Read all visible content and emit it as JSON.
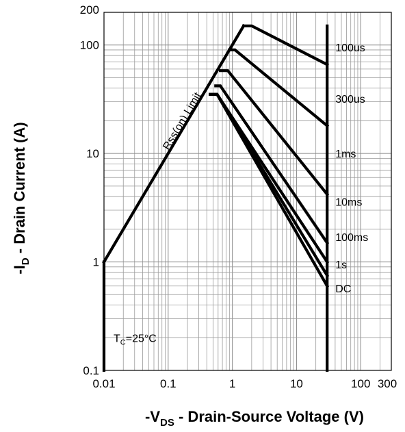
{
  "chart_data": {
    "type": "line",
    "title": "",
    "xscale": "log",
    "yscale": "log",
    "xlim": [
      0.01,
      300
    ],
    "ylim": [
      0.1,
      200
    ],
    "grid": true,
    "xlabel": {
      "prefix": "-V",
      "sub": "DS",
      "rest": " - Drain-Source Voltage (V)"
    },
    "ylabel": {
      "prefix": "-I",
      "sub": "D",
      "rest": " - Drain Current (A)"
    },
    "x_ticks": [
      {
        "value": 0.01,
        "label": "0.01"
      },
      {
        "value": 0.1,
        "label": "0.1"
      },
      {
        "value": 1,
        "label": "1"
      },
      {
        "value": 10,
        "label": "10"
      },
      {
        "value": 100,
        "label": "100"
      },
      {
        "value": 300,
        "label": "300"
      }
    ],
    "y_ticks": [
      {
        "value": 0.1,
        "label": "0.1"
      },
      {
        "value": 1,
        "label": "1"
      },
      {
        "value": 10,
        "label": "10"
      },
      {
        "value": 100,
        "label": "100"
      },
      {
        "value": 200,
        "label": "200"
      }
    ],
    "rds_limit_label": "Rss(on) Limit",
    "rds_limit": {
      "points": [
        [
          0.01,
          1.0
        ],
        [
          1.5,
          150
        ]
      ]
    },
    "annotation": {
      "t": "T",
      "sub": "C",
      "rest": "=25°C"
    },
    "max_vds": 30,
    "series": [
      {
        "name": "100us",
        "points": [
          [
            1.5,
            150
          ],
          [
            2.0,
            150
          ],
          [
            30,
            66
          ]
        ],
        "label_at": [
          30,
          95
        ]
      },
      {
        "name": "300us",
        "points": [
          [
            0.9,
            90
          ],
          [
            1.1,
            90
          ],
          [
            30,
            18
          ]
        ],
        "label_at": [
          30,
          32
        ]
      },
      {
        "name": "1ms",
        "points": [
          [
            0.65,
            58
          ],
          [
            0.85,
            58
          ],
          [
            30,
            4.2
          ]
        ],
        "label_at": [
          30,
          10
        ]
      },
      {
        "name": "10ms",
        "points": [
          [
            0.55,
            42
          ],
          [
            0.65,
            42
          ],
          [
            30,
            1.5
          ]
        ],
        "label_at": [
          30,
          3.6
        ]
      },
      {
        "name": "100ms",
        "points": [
          [
            0.45,
            35
          ],
          [
            0.58,
            35
          ],
          [
            30,
            1.0
          ]
        ],
        "label_at": [
          30,
          1.7
        ]
      },
      {
        "name": "1s",
        "points": [
          [
            0.45,
            35
          ],
          [
            0.58,
            35
          ],
          [
            30,
            0.75
          ]
        ],
        "label_at": [
          30,
          0.95
        ]
      },
      {
        "name": "DC",
        "points": [
          [
            0.45,
            35
          ],
          [
            0.58,
            35
          ],
          [
            30,
            0.6
          ]
        ],
        "label_at": [
          30,
          0.57
        ]
      }
    ]
  }
}
